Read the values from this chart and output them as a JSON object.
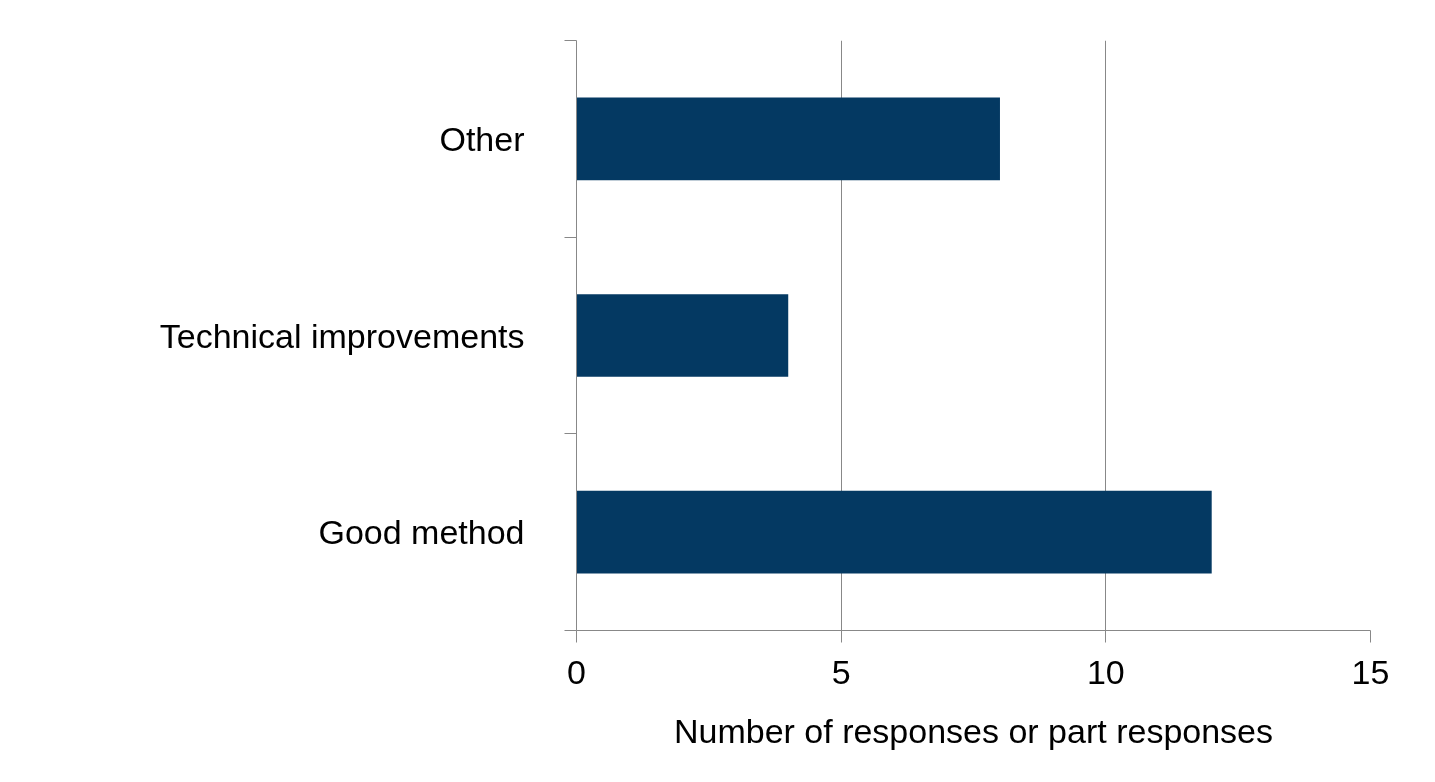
{
  "chart_data": {
    "type": "bar",
    "orientation": "horizontal",
    "categories": [
      "Other",
      "Technical improvements",
      "Good method"
    ],
    "values": [
      8,
      4,
      12
    ],
    "color": "#043962",
    "xlabel": "Number of responses or part responses",
    "xlim": [
      0,
      15
    ],
    "xticks": [
      0,
      5,
      10,
      15
    ],
    "grid": "x"
  }
}
